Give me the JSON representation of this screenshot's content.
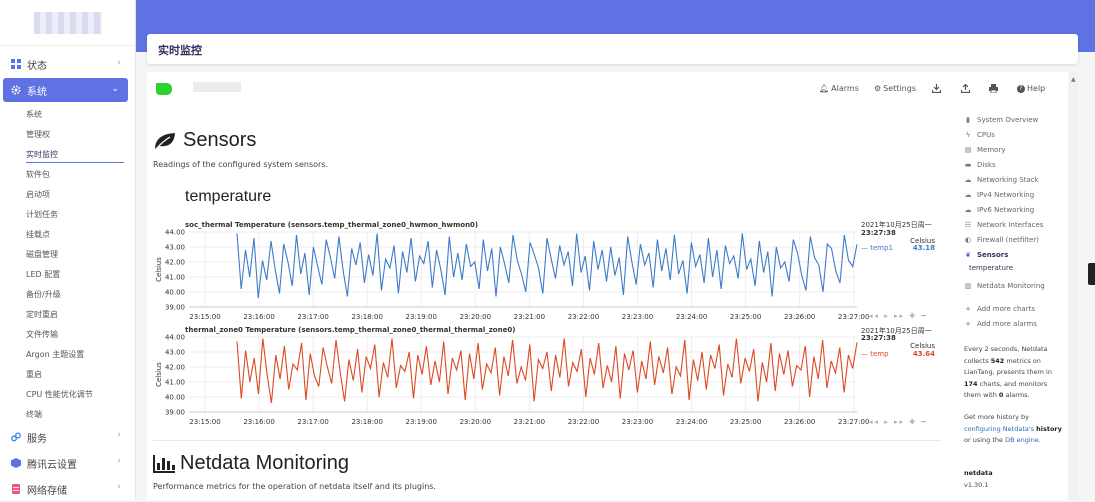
{
  "sidebar": {
    "top_items": [
      {
        "label": "状态",
        "icon": "dashboard-icon"
      },
      {
        "label": "系统",
        "icon": "gear-icon"
      }
    ],
    "sub_items": [
      "系统",
      "管理权",
      "实时监控",
      "软件包",
      "启动项",
      "计划任务",
      "挂载点",
      "磁盘管理",
      "LED 配置",
      "备份/升级",
      "定时重启",
      "文件传输",
      "Argon 主题设置",
      "重启",
      "CPU 性能优化调节",
      "终端"
    ],
    "current_sub": "实时监控",
    "bottom_items": [
      {
        "label": "服务",
        "icon": "link-icon"
      },
      {
        "label": "腾讯云设置",
        "icon": "cube-icon"
      },
      {
        "label": "网络存储",
        "icon": "storage-icon"
      }
    ]
  },
  "page_title": "实时监控",
  "toolbar": {
    "alarms": "Alarms",
    "settings": "Settings",
    "help": "Help"
  },
  "sensors": {
    "heading": "Sensors",
    "description": "Readings of the configured system sensors.",
    "subheading": "temperature"
  },
  "charts": [
    {
      "title": "soc_thermal Temperature (sensors.temp_thermal_zone0_hwmon_hwmon0)",
      "date": "2021年10月25日周一",
      "time": "23:27:38",
      "unit": "Celsius",
      "dim_name": "temp1",
      "value": "43.18",
      "ylabel": "Celsius",
      "color": "#3e7bc9"
    },
    {
      "title": "thermal_zone0 Temperature (sensors.temp_thermal_zone0_thermal_thermal_zone0)",
      "date": "2021年10月25日周一",
      "time": "23:27:38",
      "unit": "Celsius",
      "dim_name": "temp",
      "value": "43.64",
      "ylabel": "Celsius",
      "color": "#dc4a25"
    }
  ],
  "chart_data": [
    {
      "type": "line",
      "title": "soc_thermal Temperature (sensors.temp_thermal_zone0_hwmon_hwmon0)",
      "ylabel": "Celsius",
      "ylim": [
        39,
        44
      ],
      "yticks": [
        "44.00",
        "43.00",
        "42.00",
        "41.00",
        "40.00",
        "39.00"
      ],
      "xticks": [
        "23:15:00",
        "23:16:00",
        "23:17:00",
        "23:18:00",
        "23:19:00",
        "23:20:00",
        "23:21:00",
        "23:22:00",
        "23:23:00",
        "23:24:00",
        "23:25:00",
        "23:26:00",
        "23:27:00"
      ],
      "series": [
        {
          "name": "temp1",
          "color": "#3e7bc9",
          "values": [
            43.9,
            40.2,
            42.8,
            41.0,
            43.6,
            39.6,
            42.1,
            40.8,
            43.4,
            41.5,
            39.9,
            43.2,
            42.0,
            40.4,
            43.8,
            41.2,
            42.6,
            39.8,
            43.0,
            41.7,
            40.5,
            43.5,
            42.3,
            40.9,
            43.7,
            41.4,
            39.7,
            42.9,
            41.8,
            43.3,
            40.6,
            42.5,
            41.1,
            43.9,
            40.1,
            42.2,
            41.6,
            43.1,
            39.9,
            42.7,
            41.3,
            43.6,
            40.7,
            42.4,
            41.9,
            43.4,
            40.3,
            42.8,
            41.5,
            39.8,
            43.7,
            41.0,
            42.6,
            40.8,
            43.2,
            41.7,
            42.0,
            40.2,
            43.5,
            41.4,
            42.9,
            39.7,
            43.0,
            41.9,
            40.6,
            43.8,
            42.1,
            41.2,
            40.0,
            43.3,
            42.5,
            41.6,
            39.9,
            43.6,
            42.2,
            40.9,
            43.1,
            41.8,
            42.7,
            40.4,
            43.9,
            41.3,
            42.4,
            40.1,
            43.4,
            41.5,
            42.8,
            40.7,
            43.0,
            41.1,
            42.3,
            39.8,
            43.7,
            42.0,
            40.5,
            43.2,
            41.8,
            42.6,
            40.3,
            43.5,
            41.4,
            42.9,
            40.8,
            43.8,
            41.2,
            42.1,
            39.9,
            43.3,
            41.7,
            42.5,
            40.6,
            43.6,
            41.0,
            42.8,
            40.2,
            43.1,
            41.9,
            42.4,
            40.9,
            43.9,
            41.5,
            42.2,
            40.4,
            43.4,
            41.3,
            42.7,
            39.7,
            43.0,
            41.6,
            42.0,
            40.7,
            43.5,
            42.6,
            41.1,
            40.1,
            43.7,
            42.3,
            41.8,
            40.0,
            43.2,
            42.9,
            41.4,
            40.6,
            43.8,
            42.1,
            41.7,
            43.18
          ]
        }
      ]
    },
    {
      "type": "line",
      "title": "thermal_zone0 Temperature (sensors.temp_thermal_zone0_thermal_thermal_zone0)",
      "ylabel": "Celsius",
      "ylim": [
        39,
        44
      ],
      "yticks": [
        "44.00",
        "43.00",
        "42.00",
        "41.00",
        "40.00",
        "39.00"
      ],
      "xticks": [
        "23:15:00",
        "23:16:00",
        "23:17:00",
        "23:18:00",
        "23:19:00",
        "23:20:00",
        "23:21:00",
        "23:22:00",
        "23:23:00",
        "23:24:00",
        "23:25:00",
        "23:26:00",
        "23:27:00"
      ],
      "series": [
        {
          "name": "temp",
          "color": "#dc4a25",
          "values": [
            43.7,
            39.9,
            43.1,
            41.0,
            42.6,
            40.2,
            43.9,
            41.5,
            39.6,
            42.8,
            41.2,
            43.4,
            40.5,
            42.2,
            41.8,
            43.6,
            39.8,
            42.9,
            41.4,
            40.7,
            43.3,
            42.0,
            40.9,
            43.8,
            41.6,
            39.7,
            42.5,
            41.1,
            43.2,
            40.3,
            42.7,
            41.9,
            43.5,
            40.0,
            42.3,
            41.3,
            43.9,
            40.6,
            42.1,
            41.7,
            43.0,
            39.9,
            42.8,
            41.5,
            43.4,
            40.8,
            42.4,
            41.0,
            43.7,
            40.2,
            42.6,
            41.8,
            43.1,
            39.8,
            42.9,
            41.2,
            43.6,
            40.5,
            42.2,
            41.6,
            43.3,
            40.1,
            42.7,
            41.4,
            43.8,
            40.9,
            42.0,
            41.1,
            43.5,
            39.7,
            42.5,
            41.9,
            43.0,
            40.4,
            42.8,
            41.3,
            43.9,
            40.7,
            42.3,
            41.7,
            43.2,
            40.0,
            42.6,
            41.5,
            43.6,
            40.6,
            42.1,
            41.0,
            43.4,
            39.9,
            42.9,
            41.8,
            43.1,
            40.3,
            42.4,
            41.2,
            43.7,
            40.8,
            42.7,
            41.6,
            43.3,
            40.2,
            42.0,
            41.4,
            43.8,
            39.8,
            42.5,
            41.1,
            43.0,
            40.5,
            42.8,
            41.9,
            43.5,
            40.1,
            42.2,
            41.3,
            43.9,
            40.9,
            42.6,
            41.7,
            43.2,
            39.7,
            42.3,
            41.0,
            43.6,
            40.4,
            42.9,
            41.5,
            43.1,
            40.7,
            42.1,
            41.8,
            43.4,
            40.0,
            42.7,
            41.2,
            43.8,
            40.6,
            42.4,
            41.6,
            43.3,
            40.3,
            42.8,
            41.9,
            43.64
          ]
        }
      ]
    }
  ],
  "netdata": {
    "heading": "Netdata Monitoring",
    "description": "Performance metrics for the operation of netdata itself and its plugins."
  },
  "right_nav": [
    {
      "label": "System Overview",
      "icon": "bookmark-icon"
    },
    {
      "label": "CPUs",
      "icon": "bolt-icon"
    },
    {
      "label": "Memory",
      "icon": "memory-icon"
    },
    {
      "label": "Disks",
      "icon": "disk-icon"
    },
    {
      "label": "Networking Stack",
      "icon": "cloud-icon"
    },
    {
      "label": "IPv4 Networking",
      "icon": "cloud-icon"
    },
    {
      "label": "IPv6 Networking",
      "icon": "cloud-icon"
    },
    {
      "label": "Network Interfaces",
      "icon": "sitemap-icon"
    },
    {
      "label": "Firewall (netfilter)",
      "icon": "shield-icon"
    },
    {
      "label": "Sensors",
      "icon": "leaf-icon"
    }
  ],
  "right_nav_sub": "temperature",
  "right_nav_extra": [
    {
      "label": "Netdata Monitoring",
      "icon": "bar-chart-icon"
    },
    {
      "label": "Add more charts",
      "icon": "plus-icon"
    },
    {
      "label": "Add more alarms",
      "icon": "plus-icon"
    }
  ],
  "info": {
    "p1a": "Every 2 seconds, Netdata collects ",
    "metrics": "542",
    "p1b": " metrics on LianTang, presents them in ",
    "charts": "174",
    "p1c": " charts, and monitors them with ",
    "alarms": "0",
    "p1d": " alarms.",
    "p2a": "Get more history by ",
    "p2link1": "configuring Netdata's",
    "p2link2": "history",
    "p2b": " or using the ",
    "p2link3": "DB engine",
    "p2c": ".",
    "name": "netdata",
    "version": "v1.30.1"
  },
  "colors": {
    "accent": "#5e72e4",
    "blue_series": "#3e7bc9",
    "red_series": "#dc4a25",
    "netdata_green": "#2fd12f"
  }
}
